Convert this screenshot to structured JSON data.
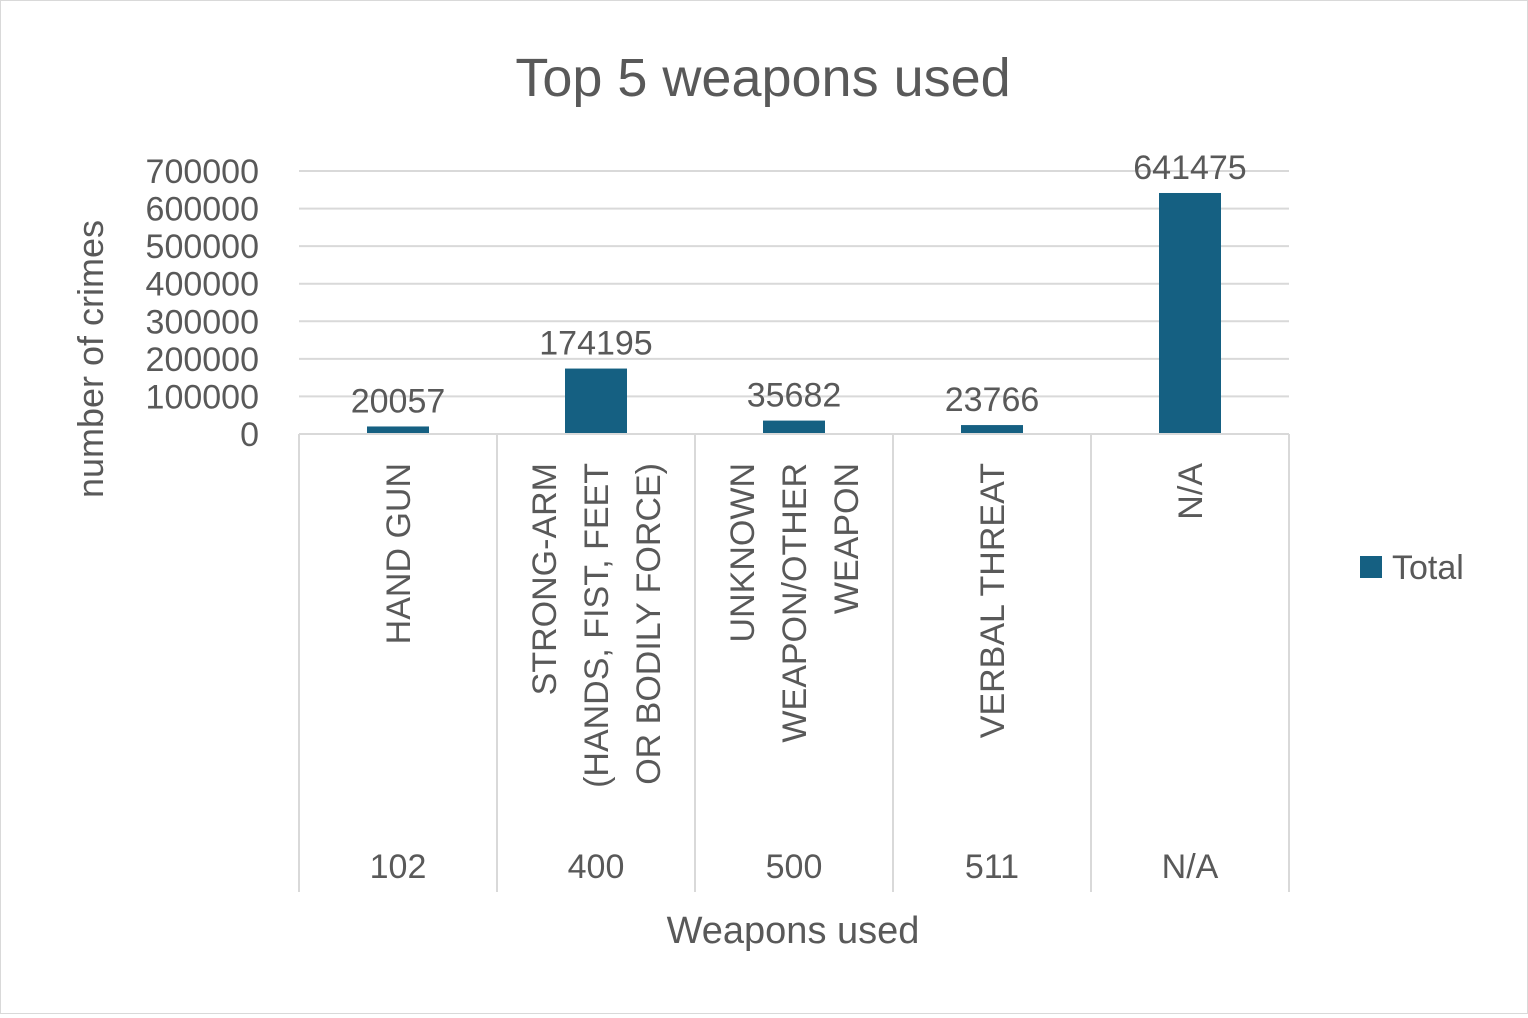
{
  "chart_data": {
    "type": "bar",
    "title": "Top 5 weapons used",
    "xlabel": "Weapons used",
    "ylabel": "number of crimes",
    "categories": [
      {
        "label": [
          "HAND GUN"
        ],
        "code": "102"
      },
      {
        "label": [
          "STRONG-ARM",
          "(HANDS, FIST, FEET",
          "OR BODILY FORCE)"
        ],
        "code": "400"
      },
      {
        "label": [
          "UNKNOWN",
          "WEAPON/OTHER",
          "WEAPON"
        ],
        "code": "500"
      },
      {
        "label": [
          "VERBAL THREAT"
        ],
        "code": "511"
      },
      {
        "label": [
          "N/A"
        ],
        "code": "N/A"
      }
    ],
    "series": [
      {
        "name": "Total",
        "color": "#156082",
        "values": [
          20057,
          174195,
          35682,
          23766,
          641475
        ]
      }
    ],
    "data_labels": [
      "20057",
      "174195",
      "35682",
      "23766",
      "641475"
    ],
    "ylim": [
      0,
      700000
    ],
    "yticks": [
      "0",
      "100000",
      "200000",
      "300000",
      "400000",
      "500000",
      "600000",
      "700000"
    ],
    "grid": true,
    "legend": "right"
  }
}
